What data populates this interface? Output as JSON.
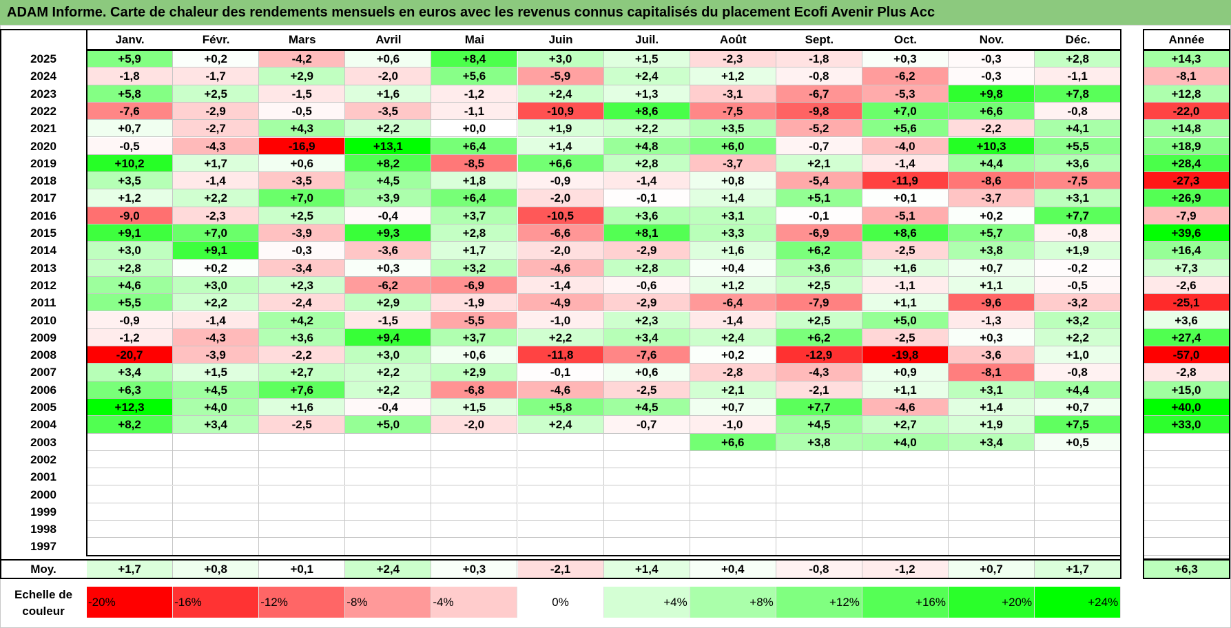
{
  "title": "ADAM Informe. Carte de chaleur des rendements mensuels en euros avec les revenus connus capitalisés du placement Ecofi Avenir Plus Acc",
  "chart_data": {
    "type": "heatmap",
    "columns": [
      "Janv.",
      "Févr.",
      "Mars",
      "Avril",
      "Mai",
      "Juin",
      "Juil.",
      "Août",
      "Sept.",
      "Oct.",
      "Nov.",
      "Déc."
    ],
    "year_column_label": "Année",
    "rows": [
      {
        "year": "2025",
        "months": [
          "+5,9",
          "+0,2",
          "-4,2",
          "+0,6",
          "+8,4",
          "+3,0",
          "+1,5",
          "-2,3",
          "-1,8",
          "+0,3",
          "-0,3",
          "+2,8"
        ],
        "annual": "+14,3"
      },
      {
        "year": "2024",
        "months": [
          "-1,8",
          "-1,7",
          "+2,9",
          "-2,0",
          "+5,6",
          "-5,9",
          "+2,4",
          "+1,2",
          "-0,8",
          "-6,2",
          "-0,3",
          "-1,1"
        ],
        "annual": "-8,1"
      },
      {
        "year": "2023",
        "months": [
          "+5,8",
          "+2,5",
          "-1,5",
          "+1,6",
          "-1,2",
          "+2,4",
          "+1,3",
          "-3,1",
          "-6,7",
          "-5,3",
          "+9,8",
          "+7,8"
        ],
        "annual": "+12,8"
      },
      {
        "year": "2022",
        "months": [
          "-7,6",
          "-2,9",
          "-0,5",
          "-3,5",
          "-1,1",
          "-10,9",
          "+8,6",
          "-7,5",
          "-9,8",
          "+7,0",
          "+6,6",
          "-0,8"
        ],
        "annual": "-22,0"
      },
      {
        "year": "2021",
        "months": [
          "+0,7",
          "-2,7",
          "+4,3",
          "+2,2",
          "+0,0",
          "+1,9",
          "+2,2",
          "+3,5",
          "-5,2",
          "+5,6",
          "-2,2",
          "+4,1"
        ],
        "annual": "+14,8"
      },
      {
        "year": "2020",
        "months": [
          "-0,5",
          "-4,3",
          "-16,9",
          "+13,1",
          "+6,4",
          "+1,4",
          "+4,8",
          "+6,0",
          "-0,7",
          "-4,0",
          "+10,3",
          "+5,5"
        ],
        "annual": "+18,9"
      },
      {
        "year": "2019",
        "months": [
          "+10,2",
          "+1,7",
          "+0,6",
          "+8,2",
          "-8,5",
          "+6,6",
          "+2,8",
          "-3,7",
          "+2,1",
          "-1,4",
          "+4,4",
          "+3,6"
        ],
        "annual": "+28,4"
      },
      {
        "year": "2018",
        "months": [
          "+3,5",
          "-1,4",
          "-3,5",
          "+4,5",
          "+1,8",
          "-0,9",
          "-1,4",
          "+0,8",
          "-5,4",
          "-11,9",
          "-8,6",
          "-7,5"
        ],
        "annual": "-27,3"
      },
      {
        "year": "2017",
        "months": [
          "+1,2",
          "+2,2",
          "+7,0",
          "+3,9",
          "+6,4",
          "-2,0",
          "-0,1",
          "+1,4",
          "+5,1",
          "+0,1",
          "-3,7",
          "+3,1"
        ],
        "annual": "+26,9"
      },
      {
        "year": "2016",
        "months": [
          "-9,0",
          "-2,3",
          "+2,5",
          "-0,4",
          "+3,7",
          "-10,5",
          "+3,6",
          "+3,1",
          "-0,1",
          "-5,1",
          "+0,2",
          "+7,7"
        ],
        "annual": "-7,9"
      },
      {
        "year": "2015",
        "months": [
          "+9,1",
          "+7,0",
          "-3,9",
          "+9,3",
          "+2,8",
          "-6,6",
          "+8,1",
          "+3,3",
          "-6,9",
          "+8,6",
          "+5,7",
          "-0,8"
        ],
        "annual": "+39,6"
      },
      {
        "year": "2014",
        "months": [
          "+3,0",
          "+9,1",
          "-0,3",
          "-3,6",
          "+1,7",
          "-2,0",
          "-2,9",
          "+1,6",
          "+6,2",
          "-2,5",
          "+3,8",
          "+1,9"
        ],
        "annual": "+16,4"
      },
      {
        "year": "2013",
        "months": [
          "+2,8",
          "+0,2",
          "-3,4",
          "+0,3",
          "+3,2",
          "-4,6",
          "+2,8",
          "+0,4",
          "+3,6",
          "+1,6",
          "+0,7",
          "-0,2"
        ],
        "annual": "+7,3"
      },
      {
        "year": "2012",
        "months": [
          "+4,6",
          "+3,0",
          "+2,3",
          "-6,2",
          "-6,9",
          "-1,4",
          "-0,6",
          "+1,2",
          "+2,5",
          "-1,1",
          "+1,1",
          "-0,5"
        ],
        "annual": "-2,6"
      },
      {
        "year": "2011",
        "months": [
          "+5,5",
          "+2,2",
          "-2,4",
          "+2,9",
          "-1,9",
          "-4,9",
          "-2,9",
          "-6,4",
          "-7,9",
          "+1,1",
          "-9,6",
          "-3,2"
        ],
        "annual": "-25,1"
      },
      {
        "year": "2010",
        "months": [
          "-0,9",
          "-1,4",
          "+4,2",
          "-1,5",
          "-5,5",
          "-1,0",
          "+2,3",
          "-1,4",
          "+2,5",
          "+5,0",
          "-1,3",
          "+3,2"
        ],
        "annual": "+3,6"
      },
      {
        "year": "2009",
        "months": [
          "-1,2",
          "-4,3",
          "+3,6",
          "+9,4",
          "+3,7",
          "+2,2",
          "+3,4",
          "+2,4",
          "+6,2",
          "-2,5",
          "+0,3",
          "+2,2"
        ],
        "annual": "+27,4"
      },
      {
        "year": "2008",
        "months": [
          "-20,7",
          "-3,9",
          "-2,2",
          "+3,0",
          "+0,6",
          "-11,8",
          "-7,6",
          "+0,2",
          "-12,9",
          "-19,8",
          "-3,6",
          "+1,0"
        ],
        "annual": "-57,0"
      },
      {
        "year": "2007",
        "months": [
          "+3,4",
          "+1,5",
          "+2,7",
          "+2,2",
          "+2,9",
          "-0,1",
          "+0,6",
          "-2,8",
          "-4,3",
          "+0,9",
          "-8,1",
          "-0,8"
        ],
        "annual": "-2,8"
      },
      {
        "year": "2006",
        "months": [
          "+6,3",
          "+4,5",
          "+7,6",
          "+2,2",
          "-6,8",
          "-4,6",
          "-2,5",
          "+2,1",
          "-2,1",
          "+1,1",
          "+3,1",
          "+4,4"
        ],
        "annual": "+15,0"
      },
      {
        "year": "2005",
        "months": [
          "+12,3",
          "+4,0",
          "+1,6",
          "-0,4",
          "+1,5",
          "+5,8",
          "+4,5",
          "+0,7",
          "+7,7",
          "-4,6",
          "+1,4",
          "+0,7"
        ],
        "annual": "+40,0"
      },
      {
        "year": "2004",
        "months": [
          "+8,2",
          "+3,4",
          "-2,5",
          "+5,0",
          "-2,0",
          "+2,4",
          "-0,7",
          "-1,0",
          "+4,5",
          "+2,7",
          "+1,9",
          "+7,5"
        ],
        "annual": "+33,0"
      },
      {
        "year": "2003",
        "months": [
          "",
          "",
          "",
          "",
          "",
          "",
          "",
          "+6,6",
          "+3,8",
          "+4,0",
          "+3,4",
          "+0,5"
        ],
        "annual": ""
      },
      {
        "year": "2002",
        "months": [
          "",
          "",
          "",
          "",
          "",
          "",
          "",
          "",
          "",
          "",
          "",
          ""
        ],
        "annual": ""
      },
      {
        "year": "2001",
        "months": [
          "",
          "",
          "",
          "",
          "",
          "",
          "",
          "",
          "",
          "",
          "",
          ""
        ],
        "annual": ""
      },
      {
        "year": "2000",
        "months": [
          "",
          "",
          "",
          "",
          "",
          "",
          "",
          "",
          "",
          "",
          "",
          ""
        ],
        "annual": ""
      },
      {
        "year": "1999",
        "months": [
          "",
          "",
          "",
          "",
          "",
          "",
          "",
          "",
          "",
          "",
          "",
          ""
        ],
        "annual": ""
      },
      {
        "year": "1998",
        "months": [
          "",
          "",
          "",
          "",
          "",
          "",
          "",
          "",
          "",
          "",
          "",
          ""
        ],
        "annual": ""
      },
      {
        "year": "1997",
        "months": [
          "",
          "",
          "",
          "",
          "",
          "",
          "",
          "",
          "",
          "",
          "",
          ""
        ],
        "annual": ""
      }
    ],
    "average": {
      "label": "Moy.",
      "months": [
        "+1,7",
        "+0,8",
        "+0,1",
        "+2,4",
        "+0,3",
        "-2,1",
        "+1,4",
        "+0,4",
        "-0,8",
        "-1,2",
        "+0,7",
        "+1,7"
      ],
      "annual": "+6,3"
    },
    "color_scale": {
      "label": "Echelle de couleur",
      "stops": [
        {
          "label": "-20%",
          "value": -20,
          "color": "#ff0000"
        },
        {
          "label": "-16%",
          "value": -16,
          "color": "#ff3333"
        },
        {
          "label": "-12%",
          "value": -12,
          "color": "#ff6666"
        },
        {
          "label": "-8%",
          "value": -8,
          "color": "#ff9999"
        },
        {
          "label": "-4%",
          "value": -4,
          "color": "#ffcccc"
        },
        {
          "label": "0%",
          "value": 0,
          "color": "#ffffff"
        },
        {
          "label": "+4%",
          "value": 4,
          "color": "#d4ffd4"
        },
        {
          "label": "+8%",
          "value": 8,
          "color": "#aaffaa"
        },
        {
          "label": "+12%",
          "value": 12,
          "color": "#80ff80"
        },
        {
          "label": "+16%",
          "value": 16,
          "color": "#55ff55"
        },
        {
          "label": "+20%",
          "value": 20,
          "color": "#2aff2a"
        },
        {
          "label": "+24%",
          "value": 24,
          "color": "#00ff00"
        }
      ]
    }
  }
}
